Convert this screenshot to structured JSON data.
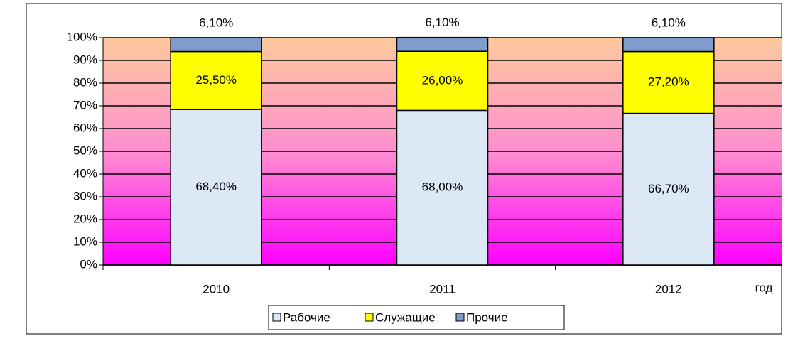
{
  "chart_data": {
    "type": "stacked_bar",
    "categories": [
      "2010",
      "2011",
      "2012"
    ],
    "xlabel": "год",
    "series": [
      {
        "name": "Рабочие",
        "color": "#dce8f5",
        "values": [
          68.4,
          68.0,
          66.7
        ],
        "value_labels": [
          "68,40%",
          "68,00%",
          "66,70%"
        ]
      },
      {
        "name": "Служащие",
        "color": "#ffff00",
        "values": [
          25.5,
          26.0,
          27.2
        ],
        "value_labels": [
          "25,50%",
          "26,00%",
          "27,20%"
        ]
      },
      {
        "name": "Прочие",
        "color": "#7f9ccc",
        "values": [
          6.1,
          6.1,
          6.1
        ],
        "value_labels": [
          "6,10%",
          "6,10%",
          "6,10%"
        ]
      }
    ],
    "ylim": [
      0,
      100
    ],
    "yticks": [
      {
        "value": 0,
        "label": "0%"
      },
      {
        "value": 10,
        "label": "10%"
      },
      {
        "value": 20,
        "label": "20%"
      },
      {
        "value": 30,
        "label": "30%"
      },
      {
        "value": 40,
        "label": "40%"
      },
      {
        "value": 50,
        "label": "50%"
      },
      {
        "value": 60,
        "label": "60%"
      },
      {
        "value": 70,
        "label": "70%"
      },
      {
        "value": 80,
        "label": "80%"
      },
      {
        "value": 90,
        "label": "90%"
      },
      {
        "value": 100,
        "label": "100%"
      }
    ],
    "grid": true,
    "legend": "bottom"
  }
}
